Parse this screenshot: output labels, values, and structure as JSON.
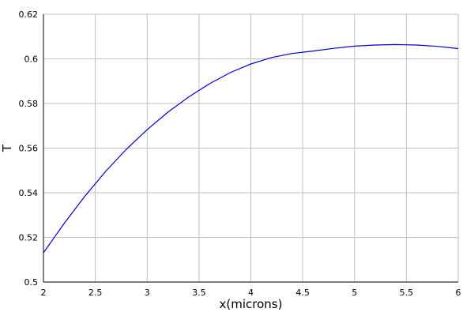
{
  "chart_data": {
    "type": "line",
    "title": "",
    "xlabel": "x(microns)",
    "ylabel": "T",
    "xlim": [
      2,
      6
    ],
    "ylim": [
      0.5,
      0.62
    ],
    "grid": true,
    "colors": {
      "series": "#0000cc",
      "grid": "#c0c0c0",
      "axis": "#000000"
    },
    "x_ticks": [
      "2",
      "2.5",
      "3",
      "3.5",
      "4",
      "4.5",
      "5",
      "5.5",
      "6"
    ],
    "y_ticks": [
      "0.5",
      "0.52",
      "0.54",
      "0.56",
      "0.58",
      "0.6",
      "0.62"
    ],
    "series": [
      {
        "x": [
          2.0,
          2.2,
          2.4,
          2.6,
          2.8,
          3.0,
          3.2,
          3.4,
          3.6,
          3.8,
          4.0,
          4.2,
          4.4,
          4.6,
          4.8,
          5.0,
          5.2,
          5.4,
          5.6,
          5.8,
          6.0
        ],
        "values": [
          0.5131,
          0.5263,
          0.5385,
          0.5496,
          0.5595,
          0.5683,
          0.5761,
          0.5829,
          0.5888,
          0.5938,
          0.5977,
          0.6006,
          0.6024,
          0.6035,
          0.6047,
          0.6057,
          0.6062,
          0.6064,
          0.6062,
          0.6056,
          0.6046
        ]
      }
    ]
  }
}
